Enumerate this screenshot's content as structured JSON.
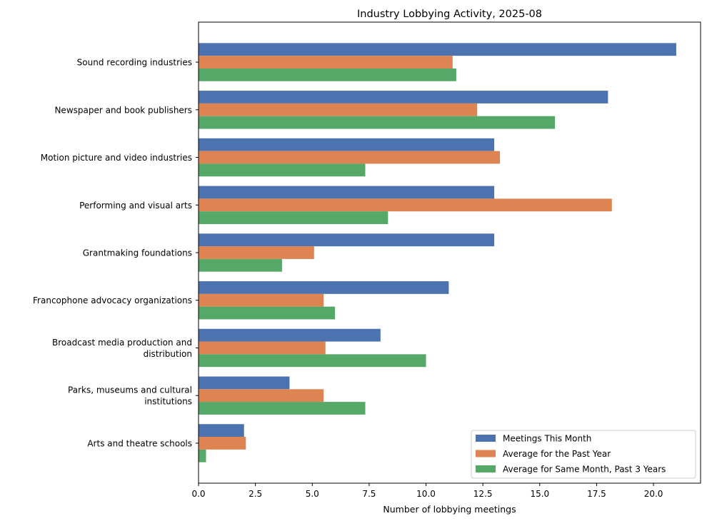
{
  "chart_data": {
    "type": "bar",
    "orientation": "horizontal",
    "title": "Industry Lobbying Activity, 2025-08",
    "xlabel": "Number of lobbying meetings",
    "ylabel": "",
    "xlim": [
      0,
      22.07
    ],
    "xticks": [
      "0.0",
      "2.5",
      "5.0",
      "7.5",
      "10.0",
      "12.5",
      "15.0",
      "17.5",
      "20.0"
    ],
    "grid": false,
    "legend_position": "lower-right",
    "categories": [
      [
        "Sound recording industries"
      ],
      [
        "Newspaper and book publishers"
      ],
      [
        "Motion picture and video industries"
      ],
      [
        "Performing and visual arts"
      ],
      [
        "Grantmaking foundations"
      ],
      [
        "Francophone advocacy organizations"
      ],
      [
        "Broadcast media production and",
        "distribution"
      ],
      [
        "Parks, museums and cultural",
        "institutions"
      ],
      [
        "Arts and theatre schools"
      ]
    ],
    "series": [
      {
        "name": "Meetings This Month",
        "color": "#4c72b0",
        "values": [
          21,
          18,
          13,
          13,
          13,
          11,
          8,
          4,
          2
        ]
      },
      {
        "name": "Average for the Past Year",
        "color": "#dd8452",
        "values": [
          11.17,
          12.25,
          13.25,
          18.17,
          5.08,
          5.5,
          5.58,
          5.5,
          2.08
        ]
      },
      {
        "name": "Average for Same Month, Past 3 Years",
        "color": "#55a868",
        "values": [
          11.33,
          15.67,
          7.33,
          8.33,
          3.67,
          6.0,
          10.0,
          7.33,
          0.33
        ]
      }
    ]
  }
}
